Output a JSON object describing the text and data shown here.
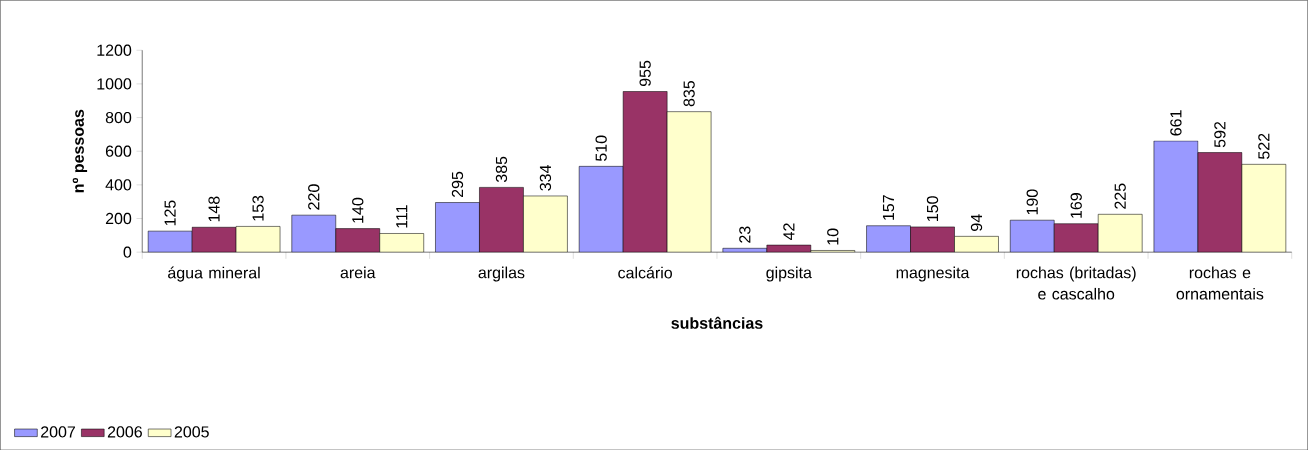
{
  "chart_data": {
    "type": "bar",
    "xlabel": "substâncias",
    "ylabel": "nº pessoas",
    "categories": [
      "água mineral",
      "areia",
      "argilas",
      "calcário",
      "gipsita",
      "magnesita",
      "rochas (britadas) e cascalho",
      "rochas e ornamentais"
    ],
    "series": [
      {
        "name": "2007",
        "color": "#9999ff",
        "values": [
          125,
          220,
          295,
          510,
          23,
          157,
          190,
          661
        ]
      },
      {
        "name": "2006",
        "color": "#993366",
        "values": [
          148,
          140,
          385,
          955,
          42,
          150,
          169,
          592
        ]
      },
      {
        "name": "2005",
        "color": "#ffffcc",
        "values": [
          153,
          111,
          334,
          835,
          10,
          94,
          225,
          522
        ]
      }
    ],
    "ylim": [
      0,
      1200
    ],
    "yticks": [
      0,
      200,
      400,
      600,
      800,
      1000,
      1200
    ],
    "data_labels": true,
    "legend": "bottom left"
  }
}
